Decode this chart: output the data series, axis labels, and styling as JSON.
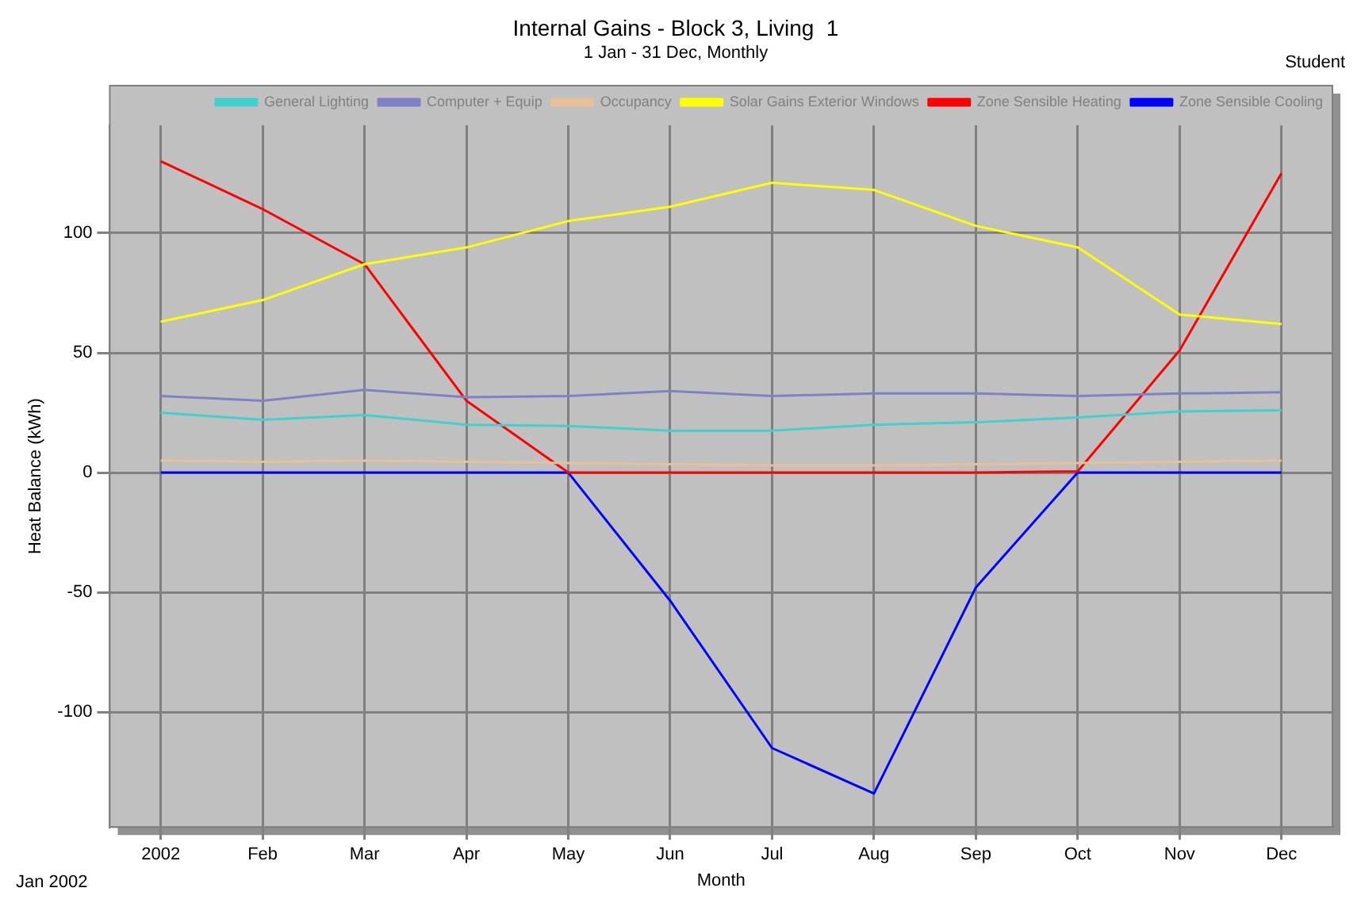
{
  "chart_data": {
    "type": "line",
    "title": "Internal Gains - Block 3, Living  1",
    "subtitle": "1 Jan - 31 Dec, Monthly",
    "xlabel": "Month",
    "ylabel": "Heat Balance (kWh)",
    "annotations": [
      "Student",
      "Jan 2002"
    ],
    "categories": [
      "2002",
      "Feb",
      "Mar",
      "Apr",
      "May",
      "Jun",
      "Jul",
      "Aug",
      "Sep",
      "Oct",
      "Nov",
      "Dec"
    ],
    "series": [
      {
        "name": "General Lighting",
        "color": "#40d0d0",
        "values": [
          25,
          22,
          24,
          20,
          19.5,
          17.5,
          17.5,
          20,
          21,
          23,
          25.5,
          26
        ]
      },
      {
        "name": "Computer + Equip",
        "color": "#8080c8",
        "values": [
          32,
          30,
          34.5,
          31.5,
          32,
          34,
          32,
          33,
          33,
          32,
          33,
          33.5
        ]
      },
      {
        "name": "Occupancy",
        "color": "#e8c098",
        "values": [
          5,
          4.5,
          5,
          4.5,
          4,
          3.5,
          3,
          3,
          3.5,
          4,
          4.5,
          5
        ]
      },
      {
        "name": "Solar Gains Exterior Windows",
        "color": "#ffff00",
        "values": [
          63,
          72,
          87,
          94,
          105,
          111,
          121,
          118,
          103,
          94,
          66,
          62
        ]
      },
      {
        "name": "Zone Sensible Heating",
        "color": "#ff0000",
        "values": [
          130,
          110,
          87,
          30,
          0,
          0,
          0,
          0,
          0,
          0.5,
          51,
          125
        ]
      },
      {
        "name": "Zone Sensible Cooling",
        "color": "#0000ff",
        "values": [
          0,
          0,
          0,
          0,
          0,
          -53.5,
          -115,
          -134,
          -48,
          0,
          0,
          0
        ]
      }
    ],
    "ylim": [
      -148,
      145
    ],
    "yticks": [
      -100,
      -50,
      0,
      50,
      100
    ],
    "grid": true,
    "legend": "top",
    "marker": "none",
    "line_style": "solid"
  }
}
